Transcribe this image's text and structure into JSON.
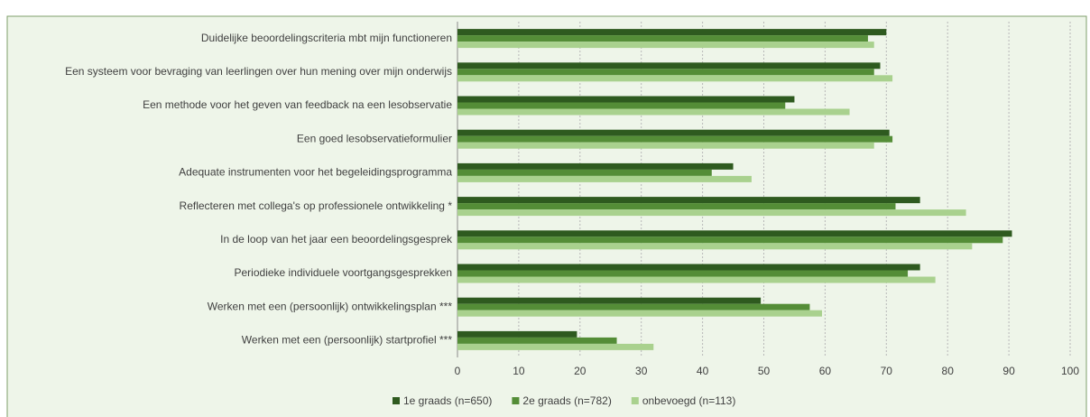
{
  "chart_data": {
    "type": "hbar",
    "categories": [
      "Duidelijke beoordelingscriteria mbt mijn functioneren",
      "Een systeem voor bevraging van leerlingen  over hun mening over mijn onderwijs",
      "Een methode voor het geven van feedback na een lesobservatie",
      "Een goed lesobservatieformulier",
      "Adequate instrumenten voor het begeleidingsprogramma",
      "Reflecteren met collega's op professionele ontwikkeling *",
      "In de loop van het jaar een beoordelingsgesprek",
      "Periodieke individuele voortgangsgesprekken",
      "Werken met een (persoonlijk) ontwikkelingsplan ***",
      "Werken met een (persoonlijk) startprofiel ***"
    ],
    "series": [
      {
        "name": "1e graads (n=650)",
        "color": "#2e5a1f",
        "values": [
          70,
          69,
          55,
          70.5,
          45,
          75.5,
          90.5,
          75.5,
          49.5,
          19.5
        ]
      },
      {
        "name": "2e graads (n=782)",
        "color": "#548d37",
        "values": [
          67,
          68,
          53.5,
          71,
          41.5,
          71.5,
          89,
          73.5,
          57.5,
          26
        ]
      },
      {
        "name": "onbevoegd (n=113)",
        "color": "#a9d18e",
        "values": [
          68,
          71,
          64,
          68,
          48,
          83,
          84,
          78,
          59.5,
          32
        ]
      }
    ],
    "xlim": [
      0,
      100
    ],
    "xticks": [
      0,
      10,
      20,
      30,
      40,
      50,
      60,
      70,
      80,
      90,
      100
    ],
    "grid": true,
    "legend": "bottom"
  }
}
